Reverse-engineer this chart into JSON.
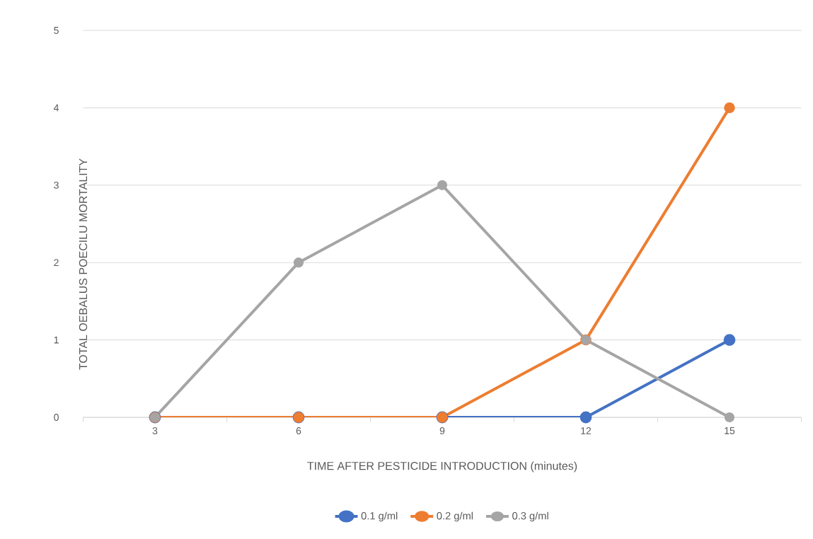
{
  "chart_data": {
    "type": "line",
    "xlabel": "TIME AFTER PESTICIDE INTRODUCTION (minutes)",
    "ylabel": "TOTAL OEBALUS POECILU MORTALITY",
    "categories": [
      "3",
      "6",
      "9",
      "12",
      "15"
    ],
    "series": [
      {
        "name": "0.1 g/ml",
        "color": "#4472c4",
        "values": [
          0,
          0,
          0,
          0,
          1
        ]
      },
      {
        "name": "0.2 g/ml",
        "color": "#ed7d31",
        "values": [
          0,
          0,
          0,
          1,
          4
        ]
      },
      {
        "name": "0.3 g/ml",
        "color": "#a5a5a5",
        "values": [
          0,
          2,
          3,
          1,
          0
        ]
      }
    ],
    "ylim": [
      0,
      5
    ],
    "yticks": [
      0,
      1,
      2,
      3,
      4,
      5
    ],
    "grid": "y",
    "legend": "bottom",
    "marker": "circle",
    "line_style": "solid"
  }
}
